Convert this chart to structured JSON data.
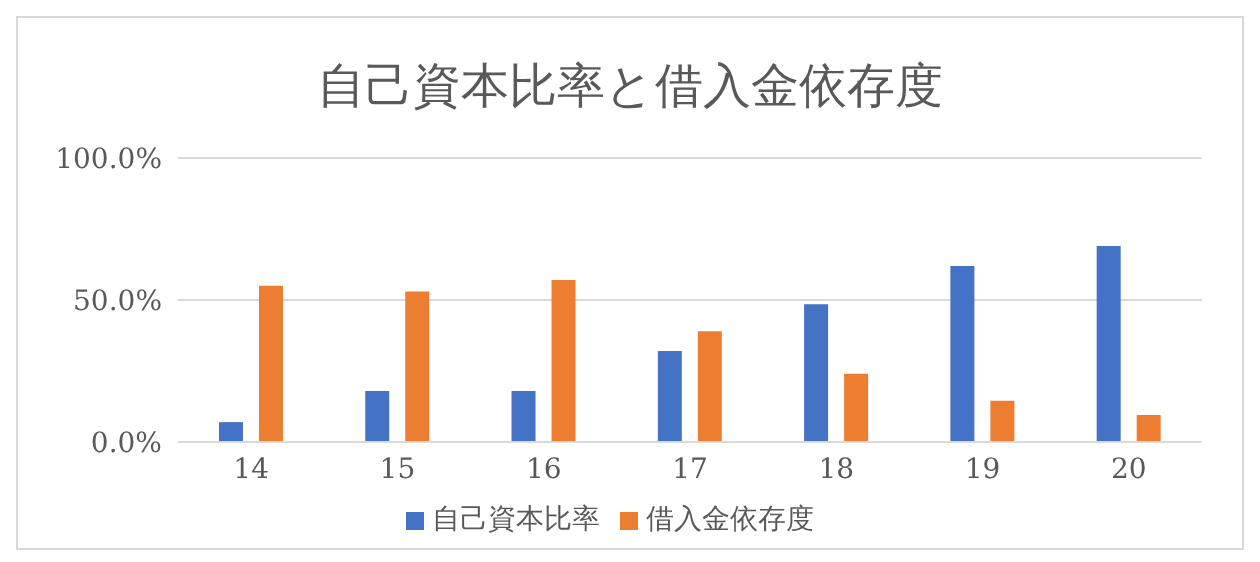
{
  "chart_data": {
    "type": "bar",
    "title": "自己資本比率と借入金依存度",
    "categories": [
      "14",
      "15",
      "16",
      "17",
      "18",
      "19",
      "20"
    ],
    "series": [
      {
        "name": "自己資本比率",
        "color": "#4472c4",
        "values": [
          7,
          18,
          18,
          32,
          48.5,
          62,
          69
        ]
      },
      {
        "name": "借入金依存度",
        "color": "#ed7d31",
        "values": [
          55,
          53,
          57,
          39,
          24,
          14.5,
          9.5
        ]
      }
    ],
    "ylim": [
      0,
      100
    ],
    "yticks": [
      {
        "value": 0,
        "label": "0.0%"
      },
      {
        "value": 50,
        "label": "50.0%"
      },
      {
        "value": 100,
        "label": "100.0%"
      }
    ],
    "grid": "y",
    "legend": "bottom"
  }
}
